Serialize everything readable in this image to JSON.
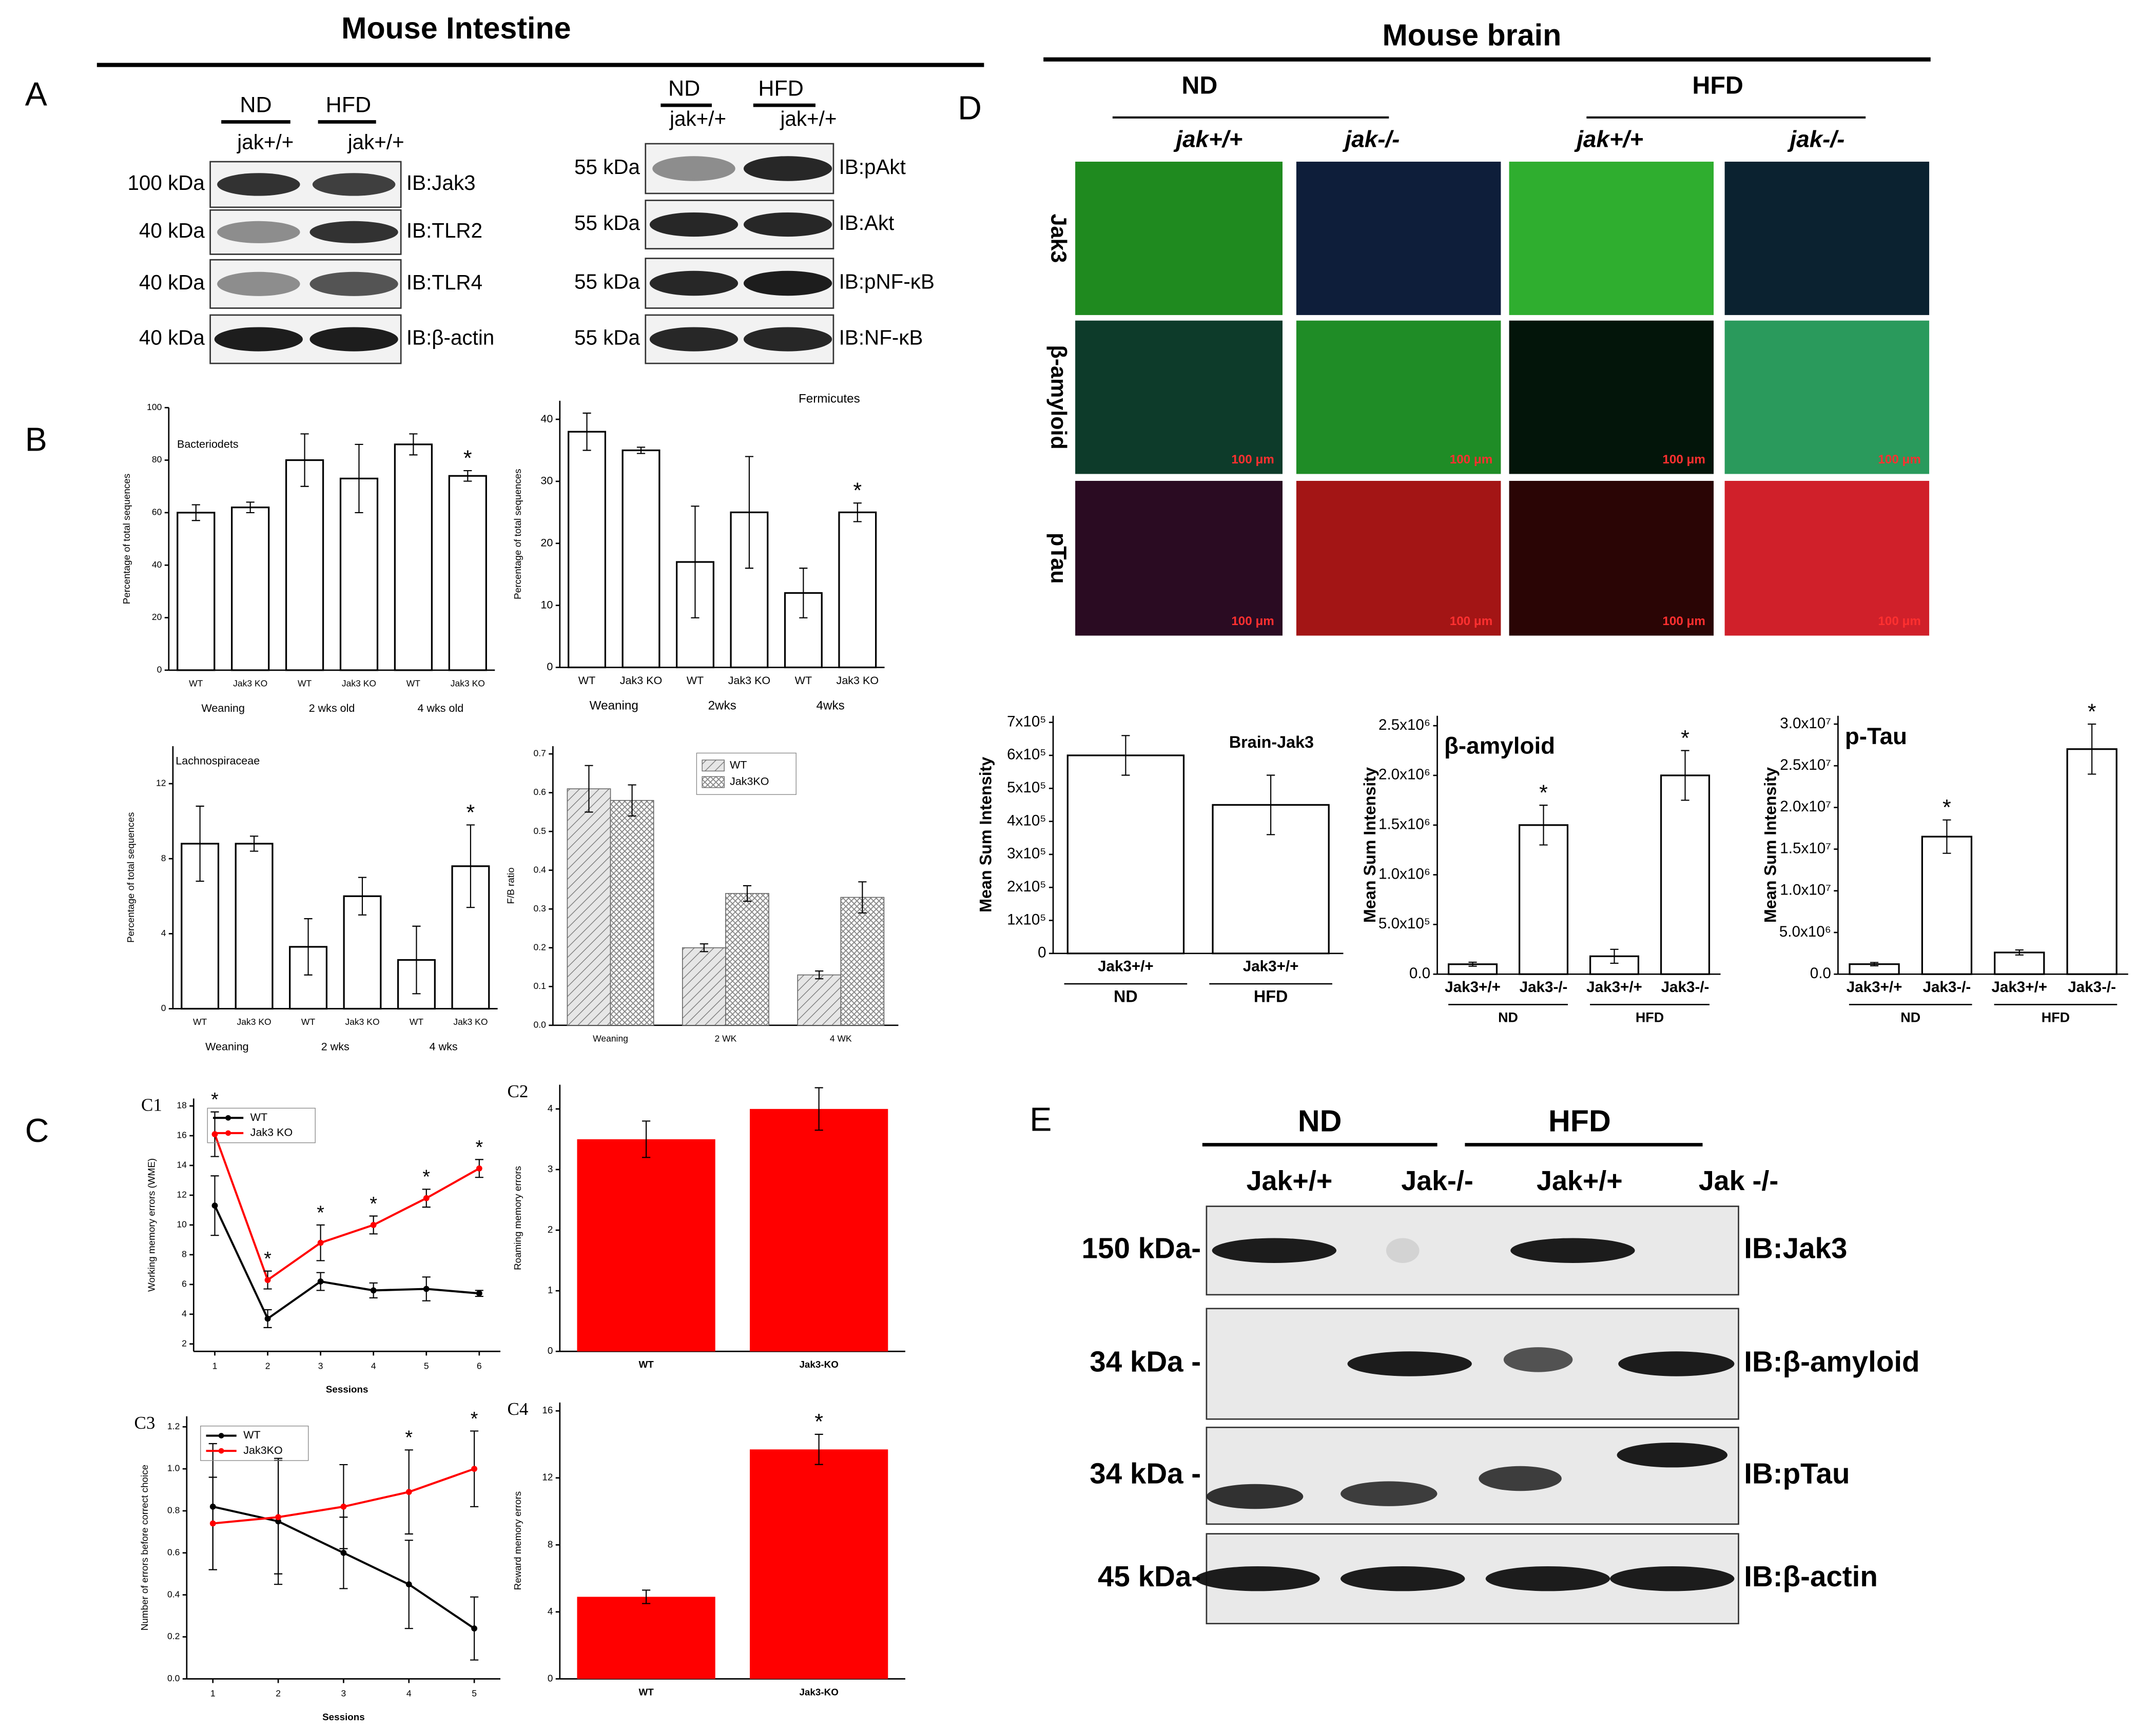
{
  "figure": {
    "title_left": "Mouse Intestine",
    "title_right": "Mouse brain",
    "panel_letters": [
      "A",
      "B",
      "C",
      "D",
      "E"
    ],
    "blot_a1": {
      "headers": [
        "ND",
        "HFD"
      ],
      "lanes": [
        "jak+/+",
        "jak+/+"
      ],
      "markers": [
        "100 kDa",
        "40 kDa",
        "40 kDa",
        "40 kDa"
      ],
      "antibodies": [
        "IB:Jak3",
        "IB:TLR2",
        "IB:TLR4",
        "IB:β-actin"
      ]
    },
    "blot_a2": {
      "headers": [
        "ND",
        "HFD"
      ],
      "lanes": [
        "jak+/+",
        "jak+/+"
      ],
      "markers": [
        "55 kDa",
        "55 kDa",
        "55 kDa",
        "55 kDa"
      ],
      "antibodies": [
        "IB:pAkt",
        "IB:Akt",
        "IB:pNF-κB",
        "IB:NF-κB"
      ]
    },
    "microscopy": {
      "headers": [
        "ND",
        "HFD"
      ],
      "lanes": [
        "jak+/+",
        "jak-/-",
        "jak+/+",
        "jak-/-"
      ],
      "rows": [
        "Jak3",
        "β-amyloid",
        "pTau"
      ],
      "scale_bar": "100 μm"
    },
    "blot_e": {
      "headers": [
        "ND",
        "HFD"
      ],
      "lanes": [
        "Jak+/+",
        "Jak-/-",
        "Jak+/+",
        "Jak -/-"
      ],
      "markers": [
        "150 kDa-",
        "34 kDa -",
        "34 kDa -",
        "45 kDa-"
      ],
      "antibodies": [
        "IB:Jak3",
        "IB:β-amyloid",
        "IB:pTau",
        "IB:β-actin"
      ]
    }
  },
  "chart_data": [
    {
      "type": "bar",
      "title": "Bacteriodets",
      "y_label": "Percentage of total sequences",
      "categories": [
        "WT",
        "Jak3 KO",
        "WT",
        "Jak3 KO",
        "WT",
        "Jak3 KO"
      ],
      "groups": [
        "Weaning",
        "2 wks old",
        "4 wks old"
      ],
      "values": [
        60,
        62,
        80,
        73,
        86,
        74
      ],
      "errors": [
        3,
        2,
        10,
        13,
        4,
        2
      ],
      "stars": [
        null,
        null,
        null,
        null,
        null,
        "*"
      ],
      "color": "#ffffff",
      "ylim": [
        0,
        100
      ],
      "yticks": [
        0,
        20,
        40,
        60,
        80,
        100
      ]
    },
    {
      "type": "bar",
      "title": "Fermicutes",
      "y_label": "Percentage of total sequences",
      "categories": [
        "WT",
        "Jak3 KO",
        "WT",
        "Jak3 KO",
        "WT",
        "Jak3 KO"
      ],
      "groups": [
        "Weaning",
        "2wks",
        "4wks"
      ],
      "values": [
        38,
        35,
        17,
        25,
        12,
        25
      ],
      "errors": [
        3,
        0.5,
        9,
        9,
        4,
        1.5
      ],
      "stars": [
        null,
        null,
        null,
        null,
        null,
        "*"
      ],
      "color": "#ffffff",
      "ylim": [
        0,
        43
      ],
      "yticks": [
        0,
        10,
        20,
        30,
        40
      ]
    },
    {
      "type": "bar",
      "title": "Lachnospiraceae",
      "y_label": "Percentage of total sequences",
      "categories": [
        "WT",
        "Jak3 KO",
        "WT",
        "Jak3 KO",
        "WT",
        "Jak3 KO"
      ],
      "groups": [
        "Weaning",
        "2 wks",
        "4 wks"
      ],
      "values": [
        8.8,
        8.8,
        3.3,
        6,
        2.6,
        7.6
      ],
      "errors": [
        2,
        0.4,
        1.5,
        1,
        1.8,
        2.2
      ],
      "stars": [
        null,
        null,
        null,
        null,
        null,
        "*"
      ],
      "color": "#ffffff",
      "ylim": [
        0,
        14
      ],
      "yticks": [
        0,
        4,
        8,
        12
      ]
    },
    {
      "type": "bar",
      "y_label": "F/B ratio",
      "categories": [
        "Weaning",
        "2 WK",
        "4 WK"
      ],
      "series": [
        {
          "name": "WT",
          "color": "#d9d9d9",
          "values": [
            0.61,
            0.2,
            0.13
          ],
          "errors": [
            0.06,
            0.01,
            0.01
          ]
        },
        {
          "name": "Jak3KO",
          "color": "#eeeeee",
          "values": [
            0.58,
            0.34,
            0.33
          ],
          "errors": [
            0.04,
            0.02,
            0.04
          ]
        }
      ],
      "ylim": [
        0,
        0.72
      ],
      "yticks": [
        {
          "value": 0,
          "label": "0.0"
        },
        0.1,
        0.2,
        0.3,
        0.4,
        0.5,
        0.6,
        0.7
      ]
    },
    {
      "type": "line",
      "label": "C1",
      "y_label": "Working memory errors (WME)",
      "x_label": "Sessions",
      "x": [
        1,
        2,
        3,
        4,
        5,
        6
      ],
      "series": [
        {
          "name": "WT",
          "color": "#000000",
          "values": [
            11.3,
            3.7,
            6.2,
            5.6,
            5.7,
            5.4
          ],
          "errors": [
            2,
            0.6,
            0.6,
            0.5,
            0.8,
            0.2
          ]
        },
        {
          "name": "Jak3 KO",
          "color": "#ff0000",
          "values": [
            16.1,
            6.3,
            8.8,
            10,
            11.8,
            13.8
          ],
          "errors": [
            1.5,
            0.6,
            1.2,
            0.6,
            0.6,
            0.6
          ]
        }
      ],
      "stars": [
        "*",
        "*",
        "*",
        "*",
        "*",
        "*"
      ],
      "xlim": [
        0.6,
        6.4
      ],
      "xticks": [
        1,
        2,
        3,
        4,
        5,
        6
      ],
      "ylim": [
        1.5,
        18.5
      ],
      "yticks": [
        2,
        4,
        6,
        8,
        10,
        12,
        14,
        16,
        18
      ]
    },
    {
      "type": "bar",
      "label": "C2",
      "y_label": "Roaming memory errors",
      "categories": [
        "WT",
        "Jak3-KO"
      ],
      "values": [
        3.5,
        4.0
      ],
      "errors": [
        0.3,
        0.35
      ],
      "color": "#ff0000",
      "ylim": [
        0,
        4.4
      ],
      "yticks": [
        0,
        1,
        2,
        3,
        4
      ]
    },
    {
      "type": "line",
      "label": "C3",
      "y_label": "Number of errors before correct choice",
      "x_label": "Sessions",
      "x": [
        1,
        2,
        3,
        4,
        5
      ],
      "series": [
        {
          "name": "WT",
          "color": "#000000",
          "values": [
            0.82,
            0.75,
            0.6,
            0.45,
            0.24
          ],
          "errors": [
            0.3,
            0.3,
            0.17,
            0.21,
            0.15
          ]
        },
        {
          "name": "Jak3KO",
          "color": "#ff0000",
          "values": [
            0.74,
            0.77,
            0.82,
            0.89,
            1.0
          ],
          "errors": [
            0.22,
            0.27,
            0.2,
            0.2,
            0.18
          ]
        }
      ],
      "stars": [
        null,
        null,
        null,
        "*",
        "*"
      ],
      "xlim": [
        0.6,
        5.4
      ],
      "xticks": [
        1,
        2,
        3,
        4,
        5
      ],
      "ylim": [
        0,
        1.25
      ],
      "yticks": [
        {
          "value": 0,
          "label": "0.0"
        },
        0.2,
        0.4,
        0.6,
        0.8,
        {
          "value": 1,
          "label": "1.0"
        },
        1.2
      ]
    },
    {
      "type": "bar",
      "label": "C4",
      "y_label": "Reward memory errors",
      "categories": [
        "WT",
        "Jak3-KO"
      ],
      "values": [
        4.9,
        13.7
      ],
      "errors": [
        0.4,
        0.9
      ],
      "stars": [
        null,
        "*"
      ],
      "color": "#ff0000",
      "ylim": [
        0,
        16.5
      ],
      "yticks": [
        0,
        4,
        8,
        12,
        16
      ]
    },
    {
      "type": "bar",
      "title": "Brain-Jak3",
      "y_label": "Mean Sum Intensity",
      "categories": [
        "Jak3+/+",
        "Jak3+/+"
      ],
      "groups": [
        "ND",
        "HFD"
      ],
      "values": [
        600000,
        450000
      ],
      "errors": [
        60000,
        90000
      ],
      "color": "#ffffff",
      "ylim": [
        0,
        720000
      ],
      "yticks": [
        0,
        {
          "value": 100000,
          "label": "1x10⁵"
        },
        {
          "value": 200000,
          "label": "2x10⁵"
        },
        {
          "value": 300000,
          "label": "3x10⁵"
        },
        {
          "value": 400000,
          "label": "4x10⁵"
        },
        {
          "value": 500000,
          "label": "5x10⁵"
        },
        {
          "value": 600000,
          "label": "6x10⁵"
        },
        {
          "value": 700000,
          "label": "7x10⁵"
        }
      ]
    },
    {
      "type": "bar",
      "title": "β-amyloid",
      "y_label": "Mean Sum Intensity",
      "categories": [
        "Jak3+/+",
        "Jak3-/-",
        "Jak3+/+",
        "Jak3-/-"
      ],
      "groups": [
        "ND",
        "HFD"
      ],
      "values": [
        100000,
        1500000,
        180000,
        2000000
      ],
      "errors": [
        20000,
        200000,
        70000,
        250000
      ],
      "stars": [
        null,
        "*",
        null,
        "*"
      ],
      "color": "#ffffff",
      "ylim": [
        0,
        2600000
      ],
      "yticks": [
        {
          "value": 0,
          "label": "0.0"
        },
        {
          "value": 500000,
          "label": "5.0x10⁵"
        },
        {
          "value": 1000000,
          "label": "1.0x10⁶"
        },
        {
          "value": 1500000,
          "label": "1.5x10⁶"
        },
        {
          "value": 2000000,
          "label": "2.0x10⁶"
        },
        {
          "value": 2500000,
          "label": "2.5x10⁶"
        }
      ]
    },
    {
      "type": "bar",
      "title": "p-Tau",
      "y_label": "Mean Sum Intensity",
      "categories": [
        "Jak3+/+",
        "Jak3-/-",
        "Jak3+/+",
        "Jak3-/-"
      ],
      "groups": [
        "ND",
        "HFD"
      ],
      "values": [
        1200000,
        16500000,
        2600000,
        27000000
      ],
      "errors": [
        200000,
        2000000,
        300000,
        3000000
      ],
      "stars": [
        null,
        "*",
        null,
        "*"
      ],
      "color": "#ffffff",
      "ylim": [
        0,
        31000000
      ],
      "yticks": [
        {
          "value": 0,
          "label": "0.0"
        },
        {
          "value": 5000000,
          "label": "5.0x10⁶"
        },
        {
          "value": 10000000,
          "label": "1.0x10⁷"
        },
        {
          "value": 15000000,
          "label": "1.5x10⁷"
        },
        {
          "value": 20000000,
          "label": "2.0x10⁷"
        },
        {
          "value": 25000000,
          "label": "2.5x10⁷"
        },
        {
          "value": 30000000,
          "label": "3.0x10⁷"
        }
      ]
    }
  ]
}
